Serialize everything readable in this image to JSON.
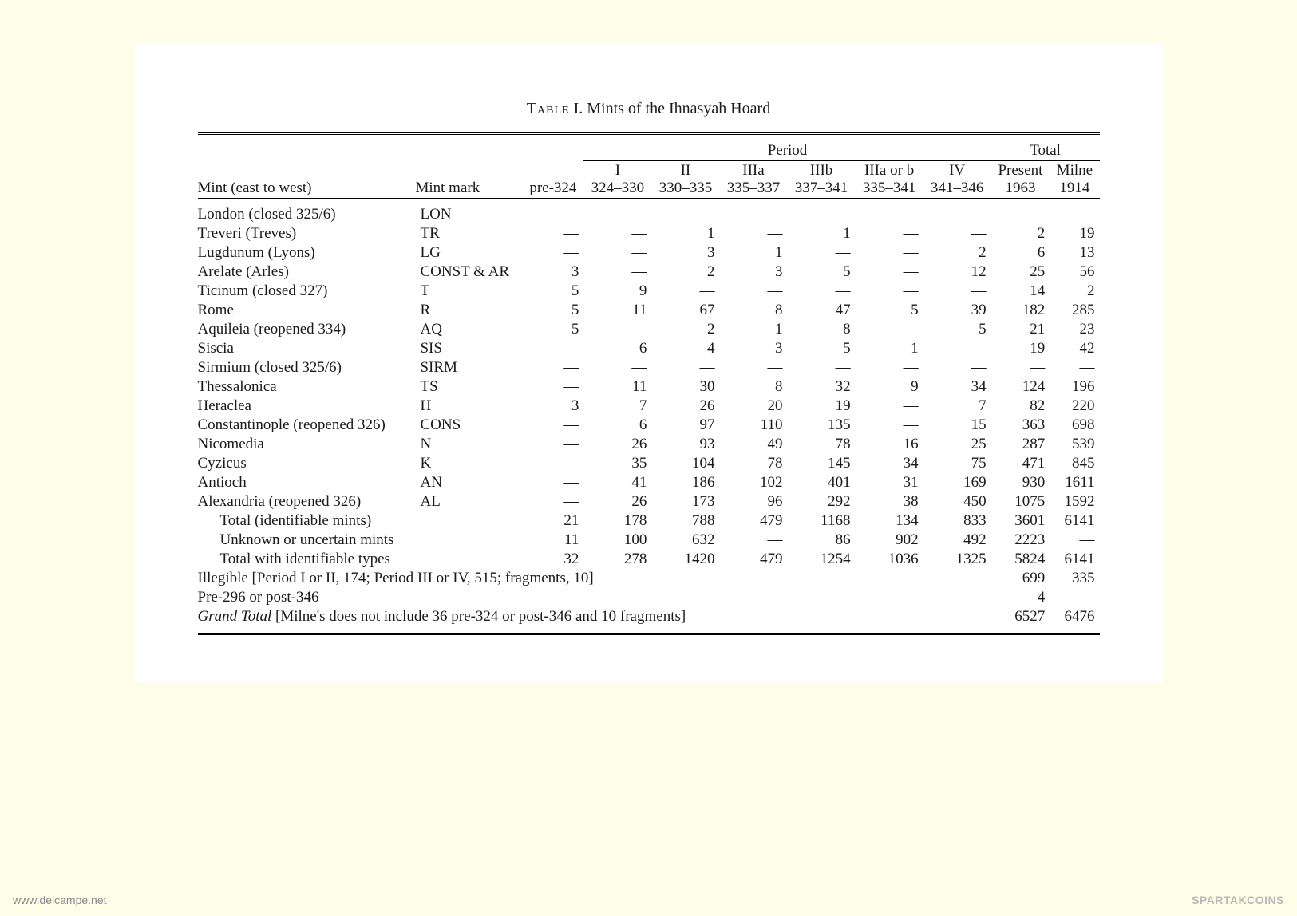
{
  "caption_prefix": "Table",
  "caption_num": " I. ",
  "caption_text": "Mints of the Ihnasyah Hoard",
  "group_period": "Period",
  "group_total": "Total",
  "head_mint": "Mint (east to west)",
  "head_mark_top": "Mint",
  "head_mark_bot": "mark",
  "cols": [
    {
      "top": "",
      "bot": "pre-324"
    },
    {
      "top": "I",
      "bot": "324–330"
    },
    {
      "top": "II",
      "bot": "330–335"
    },
    {
      "top": "IIIa",
      "bot": "335–337"
    },
    {
      "top": "IIIb",
      "bot": "337–341"
    },
    {
      "top": "IIIa or b",
      "bot": "335–341"
    },
    {
      "top": "IV",
      "bot": "341–346"
    },
    {
      "top": "Present",
      "bot": "1963"
    },
    {
      "top": "Milne",
      "bot": "1914"
    }
  ],
  "rows": [
    {
      "mint": "London (closed 325/6)",
      "mark": "LON",
      "v": [
        "—",
        "—",
        "—",
        "—",
        "—",
        "—",
        "—",
        "—",
        "—"
      ]
    },
    {
      "mint": "Treveri (Treves)",
      "mark": "TR",
      "v": [
        "—",
        "—",
        "1",
        "—",
        "1",
        "—",
        "—",
        "2",
        "19"
      ]
    },
    {
      "mint": "Lugdunum (Lyons)",
      "mark": "LG",
      "v": [
        "—",
        "—",
        "3",
        "1",
        "—",
        "—",
        "2",
        "6",
        "13"
      ]
    },
    {
      "mint": "Arelate (Arles)",
      "mark": "CONST & AR",
      "v": [
        "3",
        "—",
        "2",
        "3",
        "5",
        "—",
        "12",
        "25",
        "56"
      ]
    },
    {
      "mint": "Ticinum (closed 327)",
      "mark": "T",
      "v": [
        "5",
        "9",
        "—",
        "—",
        "—",
        "—",
        "—",
        "14",
        "2"
      ]
    },
    {
      "mint": "Rome",
      "mark": "R",
      "v": [
        "5",
        "11",
        "67",
        "8",
        "47",
        "5",
        "39",
        "182",
        "285"
      ]
    },
    {
      "mint": "Aquileia (reopened 334)",
      "mark": "AQ",
      "v": [
        "5",
        "—",
        "2",
        "1",
        "8",
        "—",
        "5",
        "21",
        "23"
      ]
    },
    {
      "mint": "Siscia",
      "mark": "SIS",
      "v": [
        "—",
        "6",
        "4",
        "3",
        "5",
        "1",
        "—",
        "19",
        "42"
      ]
    },
    {
      "mint": "Sirmium (closed 325/6)",
      "mark": "SIRM",
      "v": [
        "—",
        "—",
        "—",
        "—",
        "—",
        "—",
        "—",
        "—",
        "—"
      ]
    },
    {
      "mint": "Thessalonica",
      "mark": "TS",
      "v": [
        "—",
        "11",
        "30",
        "8",
        "32",
        "9",
        "34",
        "124",
        "196"
      ]
    },
    {
      "mint": "Heraclea",
      "mark": "H",
      "v": [
        "3",
        "7",
        "26",
        "20",
        "19",
        "—",
        "7",
        "82",
        "220"
      ]
    },
    {
      "mint": "Constantinople (reopened 326)",
      "mark": "CONS",
      "v": [
        "—",
        "6",
        "97",
        "110",
        "135",
        "—",
        "15",
        "363",
        "698"
      ]
    },
    {
      "mint": "Nicomedia",
      "mark": "N",
      "v": [
        "—",
        "26",
        "93",
        "49",
        "78",
        "16",
        "25",
        "287",
        "539"
      ]
    },
    {
      "mint": "Cyzicus",
      "mark": "K",
      "v": [
        "—",
        "35",
        "104",
        "78",
        "145",
        "34",
        "75",
        "471",
        "845"
      ]
    },
    {
      "mint": "Antioch",
      "mark": "AN",
      "v": [
        "—",
        "41",
        "186",
        "102",
        "401",
        "31",
        "169",
        "930",
        "1611"
      ]
    },
    {
      "mint": "Alexandria (reopened 326)",
      "mark": "AL",
      "v": [
        "—",
        "26",
        "173",
        "96",
        "292",
        "38",
        "450",
        "1075",
        "1592"
      ]
    },
    {
      "mint": "Total (identifiable mints)",
      "mark": "",
      "indent": true,
      "v": [
        "21",
        "178",
        "788",
        "479",
        "1168",
        "134",
        "833",
        "3601",
        "6141"
      ]
    },
    {
      "mint": "Unknown or uncertain mints",
      "mark": "",
      "indent": true,
      "v": [
        "11",
        "100",
        "632",
        "—",
        "86",
        "902",
        "492",
        "2223",
        "—"
      ]
    },
    {
      "mint": "Total with identifiable types",
      "mark": "",
      "indent": true,
      "v": [
        "32",
        "278",
        "1420",
        "479",
        "1254",
        "1036",
        "1325",
        "5824",
        "6141"
      ]
    }
  ],
  "span_rows": [
    {
      "label": "Illegible [Period I or II, 174; Period III or IV, 515; fragments, 10]",
      "present": "699",
      "milne": "335"
    },
    {
      "label": "Pre-296 or post-346",
      "present": "4",
      "milne": "—"
    }
  ],
  "grand": {
    "prefix": "Grand Total",
    "suffix": " [Milne's does not include 36 pre-324 or post-346 and 10 fragments]",
    "present": "6527",
    "milne": "6476"
  },
  "watermark_left": "www.delcampe.net",
  "watermark_right": "SPARTAKCOINS"
}
